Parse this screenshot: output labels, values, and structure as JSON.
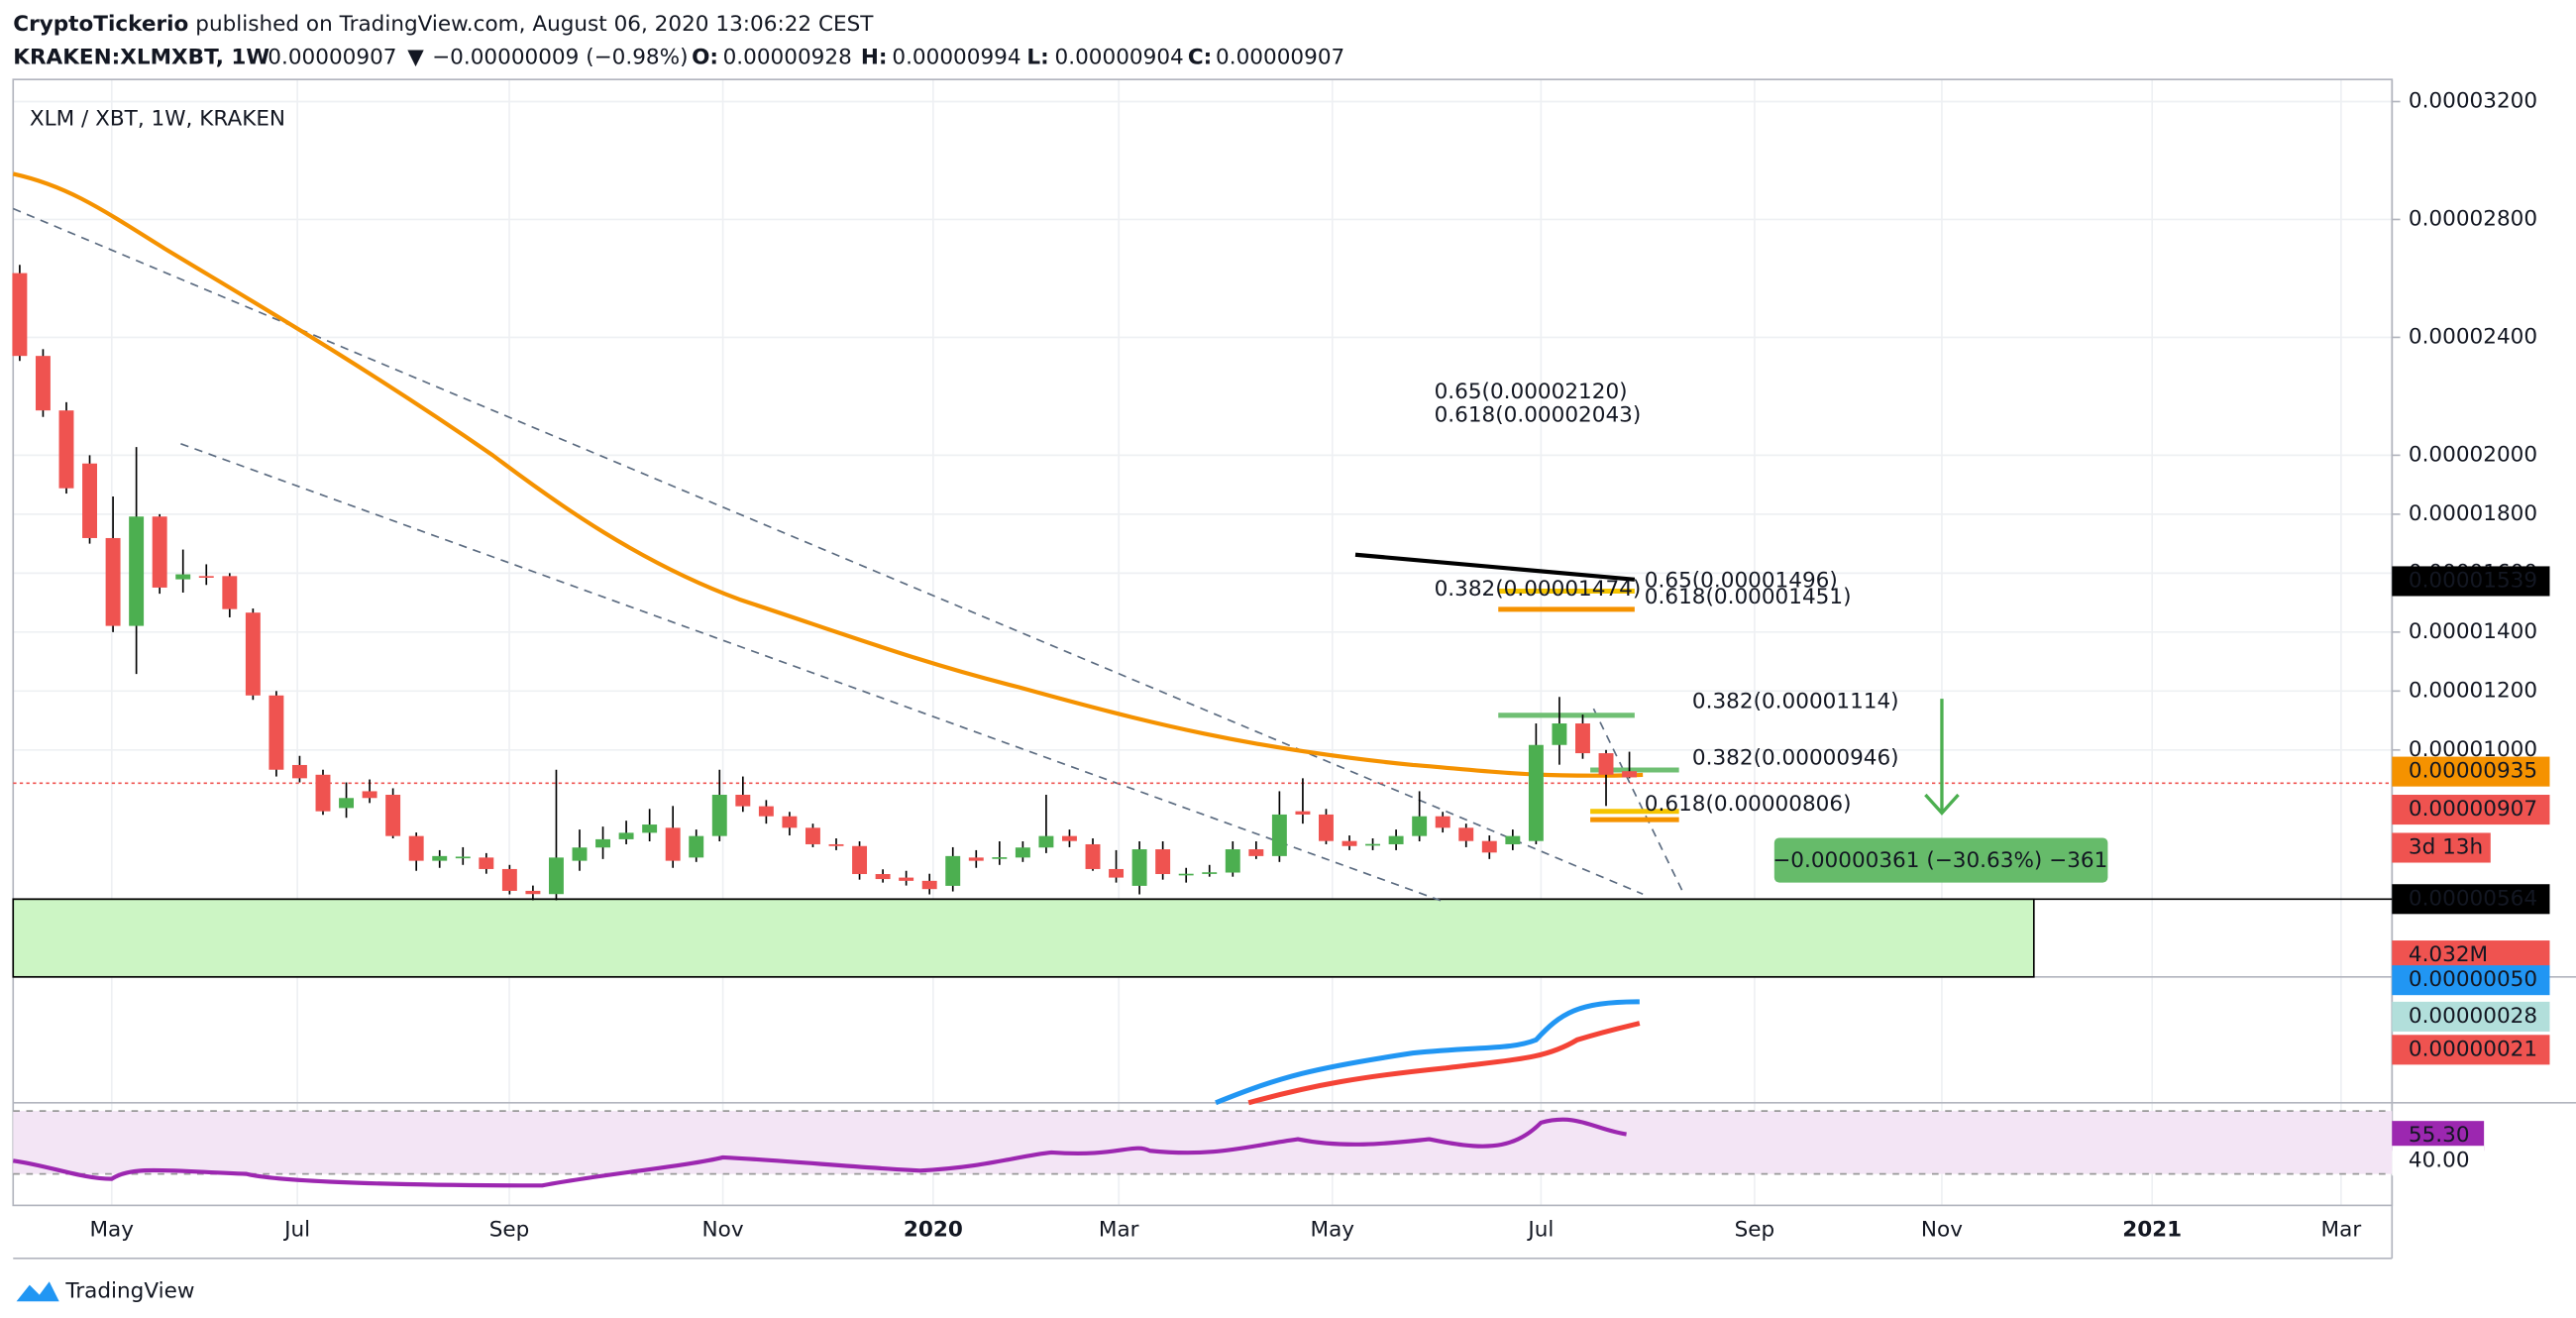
{
  "chart_data": {
    "type": "candlestick",
    "header": {
      "author": "CryptoTickerio",
      "published": "published on TradingView.com, August 06, 2020 13:06:22 CEST"
    },
    "ticker": [
      {
        "text": "KRAKEN:XLMXBT, 1W",
        "color": "#131722",
        "bold": true
      },
      {
        "text": "0.00000907",
        "color": "#131722",
        "bold": false
      },
      {
        "text": "▼",
        "color": "#ef5350",
        "bold": false
      },
      {
        "text": "−0.00000009 (−0.98%)",
        "color": "#131722",
        "bold": false
      },
      {
        "text": "O:",
        "color": "#131722",
        "bold": true
      },
      {
        "text": "0.00000928",
        "color": "#ef5350",
        "bold": false
      },
      {
        "text": "H:",
        "color": "#131722",
        "bold": true
      },
      {
        "text": "0.00000994",
        "color": "#ef5350",
        "bold": false
      },
      {
        "text": "L:",
        "color": "#131722",
        "bold": true
      },
      {
        "text": "0.00000904",
        "color": "#ef5350",
        "bold": false
      },
      {
        "text": "C:",
        "color": "#131722",
        "bold": true
      },
      {
        "text": "0.00000907",
        "color": "#ef5350",
        "bold": false
      }
    ],
    "pane_title": "XLM / XBT, 1W, KRAKEN",
    "up_color": "#4caf50",
    "down_color": "#ef5350",
    "ylim": [
      2.3e-06,
      3.275e-05
    ],
    "yticks": [
      {
        "value": 3.2e-05,
        "label": "0.00003200"
      },
      {
        "value": 2.8e-05,
        "label": "0.00002800"
      },
      {
        "value": 2.4e-05,
        "label": "0.00002400"
      },
      {
        "value": 2e-05,
        "label": "0.00002000"
      },
      {
        "value": 1.8e-05,
        "label": "0.00001800"
      },
      {
        "value": 1.6e-05,
        "label": "0.00001600"
      },
      {
        "value": 1.4e-05,
        "label": "0.00001400"
      },
      {
        "value": 1.2e-05,
        "label": "0.00001200"
      },
      {
        "value": 1e-05,
        "label": "0.00001000"
      }
    ],
    "grid": true,
    "xtick_labels": [
      {
        "text": "May",
        "bold": false
      },
      {
        "text": "Jul",
        "bold": false
      },
      {
        "text": "Sep",
        "bold": false
      },
      {
        "text": "Nov",
        "bold": false
      },
      {
        "text": "2020",
        "bold": true
      },
      {
        "text": "Mar",
        "bold": false
      },
      {
        "text": "May",
        "bold": false
      },
      {
        "text": "Jul",
        "bold": false
      },
      {
        "text": "Sep",
        "bold": false
      },
      {
        "text": "Nov",
        "bold": false
      },
      {
        "text": "2021",
        "bold": true
      },
      {
        "text": "Mar",
        "bold": false
      }
    ],
    "candles": [
      [
        2.618e-05,
        2.646e-05,
        2.32e-05,
        2.337e-05
      ],
      [
        2.337e-05,
        2.36e-05,
        2.13e-05,
        2.152e-05
      ],
      [
        2.152e-05,
        2.18e-05,
        1.87e-05,
        1.888e-05
      ],
      [
        1.972e-05,
        2e-05,
        1.7e-05,
        1.719e-05
      ],
      [
        1.719e-05,
        1.86e-05,
        1.4e-05,
        1.421e-05
      ],
      [
        1.421e-05,
        2.028e-05,
        1.258e-05,
        1.792e-05
      ],
      [
        1.792e-05,
        1.8e-05,
        1.53e-05,
        1.551e-05
      ],
      [
        1.579e-05,
        1.68e-05,
        1.534e-05,
        1.596e-05
      ],
      [
        1.59e-05,
        1.63e-05,
        1.56e-05,
        1.585e-05
      ],
      [
        1.59e-05,
        1.6e-05,
        1.45e-05,
        1.478e-05
      ],
      [
        1.466e-05,
        1.48e-05,
        1.17e-05,
        1.185e-05
      ],
      [
        1.185e-05,
        1.2e-05,
        9.1e-06,
        9.33e-06
      ],
      [
        9.49e-06,
        9.8e-06,
        8.9e-06,
        9.04e-06
      ],
      [
        9.16e-06,
        9.33e-06,
        7.8e-06,
        7.92e-06
      ],
      [
        8.03e-06,
        8.9e-06,
        7.7e-06,
        8.37e-06
      ],
      [
        8.6e-06,
        9e-06,
        8.2e-06,
        8.37e-06
      ],
      [
        8.48e-06,
        8.7e-06,
        7e-06,
        7.08e-06
      ],
      [
        7.08e-06,
        7.2e-06,
        5.9e-06,
        6.24e-06
      ],
      [
        6.24e-06,
        6.6e-06,
        6e-06,
        6.4e-06
      ],
      [
        6.35e-06,
        6.7e-06,
        6.1e-06,
        6.38e-06
      ],
      [
        6.35e-06,
        6.5e-06,
        5.8e-06,
        5.96e-06
      ],
      [
        5.96e-06,
        6.1e-06,
        5.1e-06,
        5.22e-06
      ],
      [
        5.22e-06,
        5.4e-06,
        4.9e-06,
        5.11e-06
      ],
      [
        5.11e-06,
        9.33e-06,
        4.9e-06,
        6.35e-06
      ],
      [
        6.24e-06,
        7.3e-06,
        5.9e-06,
        6.69e-06
      ],
      [
        6.69e-06,
        7.4e-06,
        6.3e-06,
        6.97e-06
      ],
      [
        6.97e-06,
        7.6e-06,
        6.8e-06,
        7.19e-06
      ],
      [
        7.19e-06,
        8e-06,
        6.9e-06,
        7.47e-06
      ],
      [
        7.36e-06,
        8.1e-06,
        6e-06,
        6.24e-06
      ],
      [
        6.35e-06,
        7.3e-06,
        6.2e-06,
        7.08e-06
      ],
      [
        7.08e-06,
        9.33e-06,
        6.9e-06,
        8.48e-06
      ],
      [
        8.48e-06,
        9.1e-06,
        7.9e-06,
        8.09e-06
      ],
      [
        8.09e-06,
        8.3e-06,
        7.5e-06,
        7.75e-06
      ],
      [
        7.75e-06,
        7.9e-06,
        7.1e-06,
        7.36e-06
      ],
      [
        7.36e-06,
        7.5e-06,
        6.7e-06,
        6.8e-06
      ],
      [
        6.8e-06,
        7e-06,
        6.6e-06,
        6.74e-06
      ],
      [
        6.74e-06,
        6.9e-06,
        5.6e-06,
        5.79e-06
      ],
      [
        5.79e-06,
        5.95e-06,
        5.5e-06,
        5.62e-06
      ],
      [
        5.67e-06,
        5.9e-06,
        5.4e-06,
        5.56e-06
      ],
      [
        5.56e-06,
        5.8e-06,
        5.1e-06,
        5.28e-06
      ],
      [
        5.39e-06,
        6.7e-06,
        5.2e-06,
        6.4e-06
      ],
      [
        6.35e-06,
        6.6e-06,
        6e-06,
        6.24e-06
      ],
      [
        6.35e-06,
        6.9e-06,
        6.1e-06,
        6.36e-06
      ],
      [
        6.35e-06,
        6.9e-06,
        6.2e-06,
        6.69e-06
      ],
      [
        6.69e-06,
        8.48e-06,
        6.5e-06,
        7.08e-06
      ],
      [
        7.08e-06,
        7.3e-06,
        6.7e-06,
        6.91e-06
      ],
      [
        6.8e-06,
        7e-06,
        5.9e-06,
        5.96e-06
      ],
      [
        5.96e-06,
        6.6e-06,
        5.5e-06,
        5.67e-06
      ],
      [
        5.39e-06,
        6.9e-06,
        5.1e-06,
        6.63e-06
      ],
      [
        6.63e-06,
        6.9e-06,
        5.6e-06,
        5.79e-06
      ],
      [
        5.79e-06,
        6e-06,
        5.5e-06,
        5.8e-06
      ],
      [
        5.84e-06,
        6.1e-06,
        5.7e-06,
        5.85e-06
      ],
      [
        5.84e-06,
        6.9e-06,
        5.7e-06,
        6.63e-06
      ],
      [
        6.63e-06,
        6.9e-06,
        6.3e-06,
        6.4e-06
      ],
      [
        6.4e-06,
        8.6e-06,
        6.2e-06,
        7.81e-06
      ],
      [
        7.92e-06,
        9.04e-06,
        7.5e-06,
        7.81e-06
      ],
      [
        7.81e-06,
        8e-06,
        6.8e-06,
        6.91e-06
      ],
      [
        6.91e-06,
        7.1e-06,
        6.6e-06,
        6.74e-06
      ],
      [
        6.8e-06,
        7e-06,
        6.6e-06,
        6.81e-06
      ],
      [
        6.8e-06,
        7.3e-06,
        6.6e-06,
        7.08e-06
      ],
      [
        7.08e-06,
        8.6e-06,
        6.9e-06,
        7.75e-06
      ],
      [
        7.75e-06,
        7.9e-06,
        7.2e-06,
        7.36e-06
      ],
      [
        7.36e-06,
        7.5e-06,
        6.7e-06,
        6.91e-06
      ],
      [
        6.91e-06,
        7.1e-06,
        6.3e-06,
        6.52e-06
      ],
      [
        6.8e-06,
        7.3e-06,
        6.6e-06,
        7.08e-06
      ],
      [
        6.91e-06,
        1.09e-05,
        6.8e-06,
        1.017e-05
      ],
      [
        1.017e-05,
        1.18e-05,
        9.5e-06,
        1.09e-05
      ],
      [
        1.09e-05,
        1.12e-05,
        9.7e-06,
        9.89e-06
      ],
      [
        9.89e-06,
        1e-05,
        8.1e-06,
        9.16e-06
      ],
      [
        9.28e-06,
        9.94e-06,
        9.04e-06,
        9.07e-06
      ]
    ],
    "annotations": [
      {
        "text": "0.65(0.00002120)",
        "color": "#f5c400"
      },
      {
        "text": "0.618(0.00002043)",
        "color": "#f59200"
      },
      {
        "text": "0.382(0.00001474)",
        "color": "#6fbf73"
      },
      {
        "text": "0.65(0.00001496)",
        "color": "#f5c400"
      },
      {
        "text": "0.618(0.00001451)",
        "color": "#f59200"
      },
      {
        "text": "0.382(0.00001114)",
        "color": "#6fbf73"
      },
      {
        "text": "0.382(0.00000946)",
        "color": "#6fbf73"
      },
      {
        "text": "0.618(0.00000806)",
        "color": "#f59200"
      }
    ],
    "measure": "−0.00000361 (−30.63%) −361",
    "price_tags": [
      {
        "text": "0.00001539",
        "color": "#000000",
        "text_color": "#ffffff"
      },
      {
        "text": "0.00000935",
        "color": "#f59200",
        "text_color": "#000000"
      },
      {
        "text": "0.00000907",
        "color": "#ef5350",
        "text_color": "#ffffff"
      },
      {
        "text": "3d 13h",
        "color": "#ef5350",
        "text_color": "#ffffff"
      },
      {
        "text": "0.00000564",
        "color": "#000000",
        "text_color": "#ffffff"
      },
      {
        "text": "4.032M",
        "color": "#ef5350",
        "text_color": "#ffffff"
      },
      {
        "text": "0.00000050",
        "color": "#2196f3",
        "text_color": "#000000"
      },
      {
        "text": "0.00000028",
        "color": "#b2dfdb",
        "text_color": "#000000"
      },
      {
        "text": "0.00000021",
        "color": "#ef5350",
        "text_color": "#ffffff"
      },
      {
        "text": "55.30",
        "color": "#9c27b0",
        "text_color": "#ffffff"
      },
      {
        "text": "40.00",
        "color": "#ffffff",
        "text_color": "#131722"
      }
    ],
    "footer": "TradingView"
  }
}
